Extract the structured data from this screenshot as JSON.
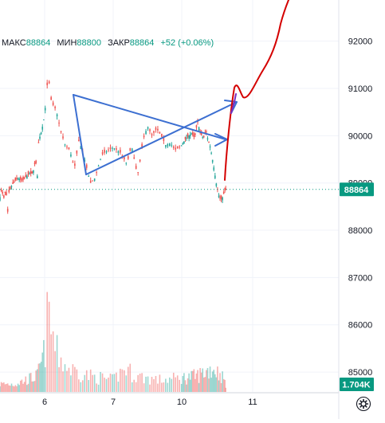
{
  "legend": {
    "high_label": "МАКС",
    "high_value": "88864",
    "low_label": "МИН",
    "low_value": "88800",
    "close_label": "ЗАКР",
    "close_value": "88864",
    "change": "+52 (+0.06%)"
  },
  "colors": {
    "up": "#26a69a",
    "down": "#ef5350",
    "price_badge": "#089981",
    "volume_badge": "#089981",
    "drawing_blue": "#3c6fd1",
    "drawing_red": "#d40000",
    "projection_purple": "#7b2fbe",
    "grid": "#f0f3fa",
    "axis_text": "#131722"
  },
  "chart_data": {
    "type": "candlestick",
    "y_axis": {
      "ticks": [
        92000,
        91000,
        90000,
        89000,
        88000,
        87000,
        86000,
        85000
      ],
      "range": [
        84850,
        92550
      ]
    },
    "x_axis": {
      "ticks": [
        "6",
        "7",
        "10",
        "11"
      ]
    },
    "last_price": 88864,
    "last_volume_label": "1.704K",
    "price_path": [
      {
        "t": 0,
        "p": 88700
      },
      {
        "t": 0.1,
        "p": 88850
      },
      {
        "t": 0.3,
        "p": 88650
      },
      {
        "t": 0.4,
        "p": 88950
      },
      {
        "t": 0.5,
        "p": 88300
      },
      {
        "t": 0.6,
        "p": 88800
      },
      {
        "t": 0.8,
        "p": 88950
      },
      {
        "t": 1.0,
        "p": 89050
      },
      {
        "t": 1.2,
        "p": 89100
      },
      {
        "t": 1.5,
        "p": 89050
      },
      {
        "t": 1.8,
        "p": 89150
      },
      {
        "t": 2.0,
        "p": 89200
      },
      {
        "t": 2.2,
        "p": 89200
      },
      {
        "t": 2.4,
        "p": 89500
      },
      {
        "t": 2.5,
        "p": 89100
      },
      {
        "t": 2.6,
        "p": 89900
      },
      {
        "t": 2.8,
        "p": 90100
      },
      {
        "t": 3.0,
        "p": 90450
      },
      {
        "t": 3.1,
        "p": 91000
      },
      {
        "t": 3.15,
        "p": 91300
      },
      {
        "t": 3.3,
        "p": 90700
      },
      {
        "t": 3.5,
        "p": 90550
      },
      {
        "t": 3.7,
        "p": 90100
      },
      {
        "t": 3.9,
        "p": 89800
      },
      {
        "t": 4.1,
        "p": 89700
      },
      {
        "t": 4.3,
        "p": 89300
      },
      {
        "t": 4.5,
        "p": 89900
      },
      {
        "t": 4.7,
        "p": 89600
      },
      {
        "t": 4.9,
        "p": 89200
      },
      {
        "t": 5.0,
        "p": 89000
      },
      {
        "t": 5.2,
        "p": 89100
      },
      {
        "t": 5.5,
        "p": 89600
      },
      {
        "t": 5.8,
        "p": 89700
      },
      {
        "t": 6.0,
        "p": 89750
      },
      {
        "t": 6.3,
        "p": 89650
      },
      {
        "t": 6.6,
        "p": 89400
      },
      {
        "t": 6.8,
        "p": 89800
      },
      {
        "t": 7.0,
        "p": 89300
      },
      {
        "t": 7.1,
        "p": 89200
      },
      {
        "t": 7.3,
        "p": 89900
      },
      {
        "t": 7.5,
        "p": 90200
      },
      {
        "t": 7.7,
        "p": 90000
      },
      {
        "t": 7.9,
        "p": 90150
      },
      {
        "t": 8.1,
        "p": 90000
      },
      {
        "t": 8.3,
        "p": 89800
      },
      {
        "t": 8.5,
        "p": 89850
      },
      {
        "t": 8.7,
        "p": 89700
      },
      {
        "t": 8.9,
        "p": 89750
      },
      {
        "t": 9.1,
        "p": 89850
      },
      {
        "t": 9.3,
        "p": 89950
      },
      {
        "t": 9.5,
        "p": 90000
      },
      {
        "t": 9.7,
        "p": 90050
      },
      {
        "t": 9.9,
        "p": 89950
      },
      {
        "t": 10.1,
        "p": 90300
      },
      {
        "t": 10.3,
        "p": 90050
      },
      {
        "t": 10.5,
        "p": 89950
      },
      {
        "t": 10.7,
        "p": 90100
      },
      {
        "t": 10.8,
        "p": 89950
      },
      {
        "t": 11.0,
        "p": 89750
      },
      {
        "t": 11.2,
        "p": 89400
      },
      {
        "t": 11.4,
        "p": 89000
      },
      {
        "t": 11.6,
        "p": 88700
      },
      {
        "t": 11.8,
        "p": 88650
      },
      {
        "t": 12.0,
        "p": 88850
      },
      {
        "t": 12.1,
        "p": 88864
      }
    ],
    "volume_profile": [
      {
        "t": 0,
        "v": 0.1
      },
      {
        "t": 1.0,
        "v": 0.1
      },
      {
        "t": 2.5,
        "v": 0.2
      },
      {
        "t": 3.0,
        "v": 0.5
      },
      {
        "t": 3.15,
        "v": 1.0
      },
      {
        "t": 3.5,
        "v": 0.5
      },
      {
        "t": 4.0,
        "v": 0.3
      },
      {
        "t": 5.0,
        "v": 0.2
      },
      {
        "t": 6.0,
        "v": 0.15
      },
      {
        "t": 6.5,
        "v": 0.3
      },
      {
        "t": 7.0,
        "v": 0.2
      },
      {
        "t": 8.0,
        "v": 0.15
      },
      {
        "t": 10.0,
        "v": 0.2
      },
      {
        "t": 11.2,
        "v": 0.3
      },
      {
        "t": 11.8,
        "v": 0.2
      },
      {
        "t": 12.1,
        "v": 0.1
      }
    ]
  }
}
